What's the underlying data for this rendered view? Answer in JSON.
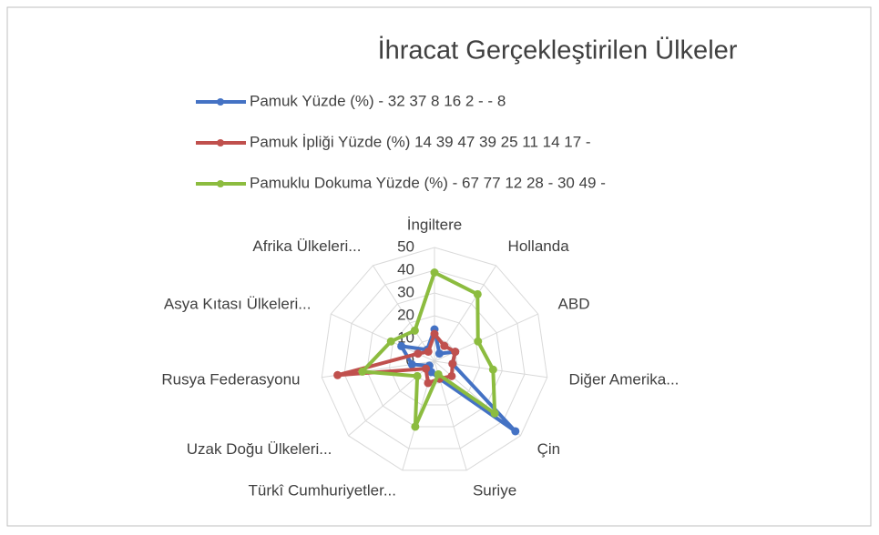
{
  "chart_data": {
    "type": "radar",
    "title": "İhracat Gerçekleştirilen Ülkeler",
    "categories": [
      "İngiltere",
      "Hollanda",
      "ABD",
      "Diğer Amerika...",
      "Çin",
      "Suriye",
      "Türkî Cumhuriyetler...",
      "Uzak Doğu Ülkeleri...",
      "Rusya Federasyonu",
      "Asya Kıtası Ülkeleri...",
      "Afrika Ülkeleri..."
    ],
    "series": [
      {
        "name": "Pamuk Yüzde (%) - 32 37 8 16 2 - - 8",
        "color": "#4472c4",
        "values": [
          14,
          4,
          10,
          8,
          47,
          8,
          5,
          3,
          10,
          16,
          6
        ]
      },
      {
        "name": "Pamuk İpliği Yüzde (%) 14 39 47 39 25 11 14 17 -",
        "color": "#c0504d",
        "values": [
          12,
          8,
          10,
          8,
          10,
          8,
          10,
          5,
          43,
          8,
          5
        ]
      },
      {
        "name": "Pamuklu Dokuma Yüzde (%) - 67 77 12 28 - 30 49 -",
        "color": "#8cbc3f",
        "values": [
          39,
          35,
          21,
          26,
          35,
          6,
          30,
          10,
          32,
          21,
          16
        ]
      }
    ],
    "rlim": [
      0,
      50
    ],
    "rticks": [
      0,
      10,
      20,
      30,
      40,
      50
    ],
    "grid": true
  }
}
